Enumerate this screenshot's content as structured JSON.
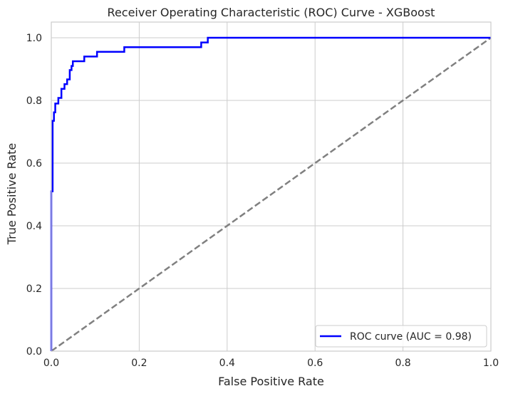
{
  "chart_data": {
    "type": "line",
    "title": "Receiver Operating Characteristic (ROC) Curve - XGBoost",
    "xlabel": "False Positive Rate",
    "ylabel": "True Positive Rate",
    "xlim": [
      0,
      1
    ],
    "ylim": [
      0,
      1.05
    ],
    "xticks": [
      "0.0",
      "0.2",
      "0.4",
      "0.6",
      "0.8",
      "1.0"
    ],
    "yticks": [
      "0.0",
      "0.2",
      "0.4",
      "0.6",
      "0.8",
      "1.0"
    ],
    "grid": true,
    "legend_placement": "lower-right",
    "series": [
      {
        "name": "ROC curve (AUC = 0.98)",
        "color": "#0000ff",
        "style": "solid",
        "x": [
          0.0,
          0.0,
          0.003,
          0.003,
          0.003,
          0.006,
          0.006,
          0.009,
          0.009,
          0.016,
          0.016,
          0.023,
          0.023,
          0.03,
          0.03,
          0.036,
          0.036,
          0.042,
          0.042,
          0.046,
          0.046,
          0.049,
          0.049,
          0.075,
          0.075,
          0.104,
          0.104,
          0.166,
          0.166,
          0.341,
          0.341,
          0.356,
          0.356,
          1.0
        ],
        "y": [
          0.0,
          0.51,
          0.51,
          0.65,
          0.735,
          0.735,
          0.762,
          0.762,
          0.79,
          0.79,
          0.808,
          0.808,
          0.837,
          0.837,
          0.852,
          0.852,
          0.867,
          0.867,
          0.897,
          0.897,
          0.91,
          0.91,
          0.925,
          0.925,
          0.94,
          0.94,
          0.955,
          0.955,
          0.97,
          0.97,
          0.985,
          0.985,
          1.0,
          1.0
        ]
      },
      {
        "name": "",
        "color": "#808080",
        "style": "dashed",
        "x": [
          0,
          1
        ],
        "y": [
          0,
          1
        ]
      }
    ]
  }
}
